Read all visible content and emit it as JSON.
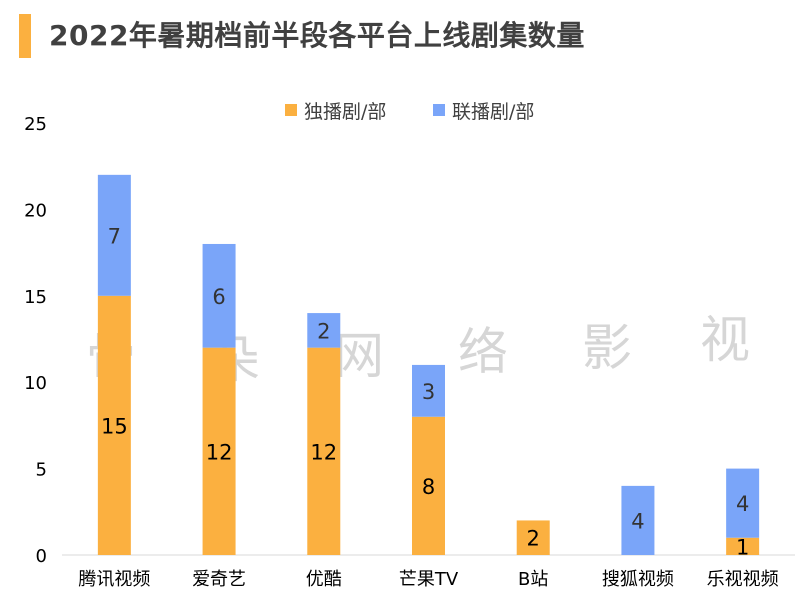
{
  "title": "2022年暑期档前半段各平台上线剧集数量",
  "watermark": [
    "骨",
    "朵",
    "网",
    "络",
    "影",
    "视"
  ],
  "colors": {
    "accent": "#FBB040",
    "exclusive": "#FBB040",
    "joint": "#7AA5F9",
    "axis": "#d9d9d9",
    "text": "#000000"
  },
  "chart_data": {
    "type": "bar",
    "stacked": true,
    "title": "2022年暑期档前半段各平台上线剧集数量",
    "xlabel": "",
    "ylabel": "",
    "ylim": [
      0,
      25
    ],
    "yticks": [
      0,
      5,
      10,
      15,
      20,
      25
    ],
    "grid": false,
    "legend": "top-center",
    "categories": [
      "腾讯视频",
      "爱奇艺",
      "优酷",
      "芒果TV",
      "B站",
      "搜狐视频",
      "乐视视频"
    ],
    "series": [
      {
        "name": "独播剧/部",
        "color": "#FBB040",
        "values": [
          15,
          12,
          12,
          8,
          2,
          0,
          1
        ]
      },
      {
        "name": "联播剧/部",
        "color": "#7AA5F9",
        "values": [
          7,
          6,
          2,
          3,
          0,
          4,
          4
        ]
      }
    ]
  }
}
